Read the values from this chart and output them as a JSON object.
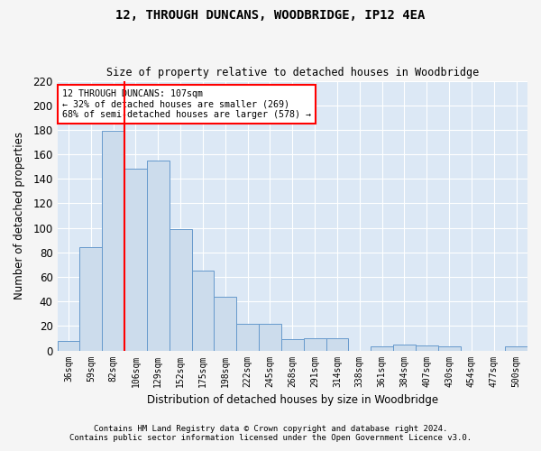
{
  "title": "12, THROUGH DUNCANS, WOODBRIDGE, IP12 4EA",
  "subtitle": "Size of property relative to detached houses in Woodbridge",
  "xlabel": "Distribution of detached houses by size in Woodbridge",
  "ylabel": "Number of detached properties",
  "bar_color": "#ccdcec",
  "bar_edge_color": "#6699cc",
  "background_color": "#dce8f5",
  "fig_background": "#f5f5f5",
  "grid_color": "#ffffff",
  "bins": [
    "36sqm",
    "59sqm",
    "82sqm",
    "106sqm",
    "129sqm",
    "152sqm",
    "175sqm",
    "198sqm",
    "222sqm",
    "245sqm",
    "268sqm",
    "291sqm",
    "314sqm",
    "338sqm",
    "361sqm",
    "384sqm",
    "407sqm",
    "430sqm",
    "454sqm",
    "477sqm",
    "500sqm"
  ],
  "values": [
    8,
    84,
    179,
    148,
    155,
    99,
    65,
    44,
    22,
    22,
    9,
    10,
    10,
    0,
    3,
    5,
    4,
    3,
    0,
    0,
    3
  ],
  "ylim": [
    0,
    220
  ],
  "yticks": [
    0,
    20,
    40,
    60,
    80,
    100,
    120,
    140,
    160,
    180,
    200,
    220
  ],
  "vline_bin_index": 3,
  "annotation_line1": "12 THROUGH DUNCANS: 107sqm",
  "annotation_line2": "← 32% of detached houses are smaller (269)",
  "annotation_line3": "68% of semi-detached houses are larger (578) →",
  "footnote1": "Contains HM Land Registry data © Crown copyright and database right 2024.",
  "footnote2": "Contains public sector information licensed under the Open Government Licence v3.0."
}
